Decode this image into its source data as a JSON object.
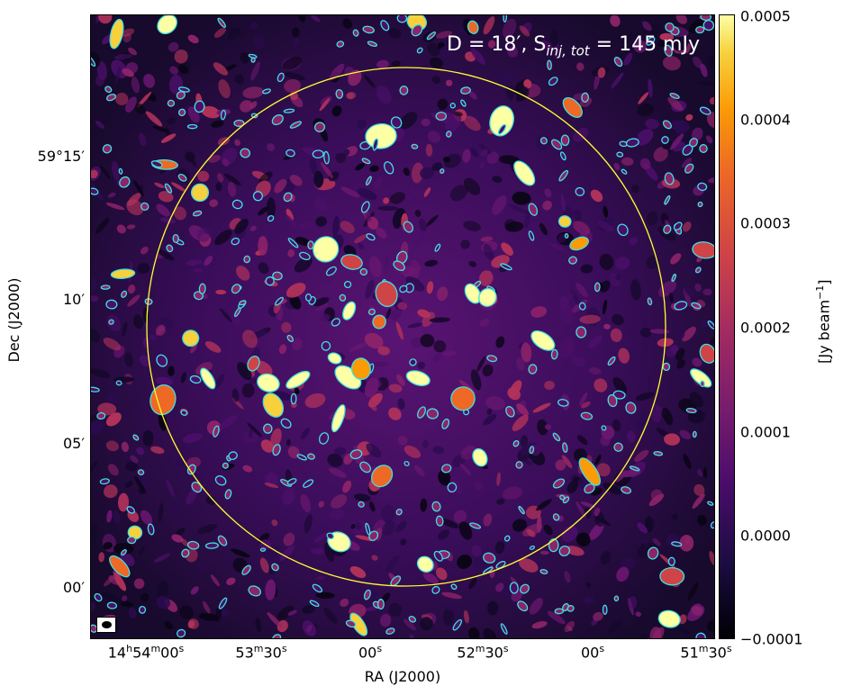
{
  "annotation": {
    "prefix": "D = 18′, S",
    "subscript": "inj, tot",
    "suffix": " = 145 mJy"
  },
  "axes": {
    "xlabel": "RA (J2000)",
    "ylabel": "Dec (J2000)",
    "xticks": [
      {
        "main": "14",
        "h": "h",
        "m_val": "54",
        "m": "m",
        "s_val": "00",
        "s": "s"
      },
      {
        "main": "",
        "h": "",
        "m_val": "53",
        "m": "m",
        "s_val": "30",
        "s": "s"
      },
      {
        "main": "",
        "h": "",
        "m_val": "",
        "m": "",
        "s_val": "00",
        "s": "s"
      },
      {
        "main": "",
        "h": "",
        "m_val": "52",
        "m": "m",
        "s_val": "30",
        "s": "s"
      },
      {
        "main": "",
        "h": "",
        "m_val": "",
        "m": "",
        "s_val": "00",
        "s": "s"
      },
      {
        "main": "",
        "h": "",
        "m_val": "51",
        "m": "m",
        "s_val": "30",
        "s": "s"
      }
    ],
    "yticks": [
      "59°15′",
      "10′",
      "05′",
      "00′"
    ]
  },
  "colorbar": {
    "title": "[Jy beam",
    "title_exp": "−1",
    "title_end": "]",
    "ticks": [
      "0.0005",
      "0.0004",
      "0.0003",
      "0.0002",
      "0.0001",
      "0.0000",
      "−0.0001"
    ],
    "colormap": "inferno",
    "range": [
      -0.0001,
      0.0005
    ]
  },
  "colors": {
    "contour": "#3fe0e0",
    "circle": "#ffff33",
    "background": "#1a0a2e"
  }
}
